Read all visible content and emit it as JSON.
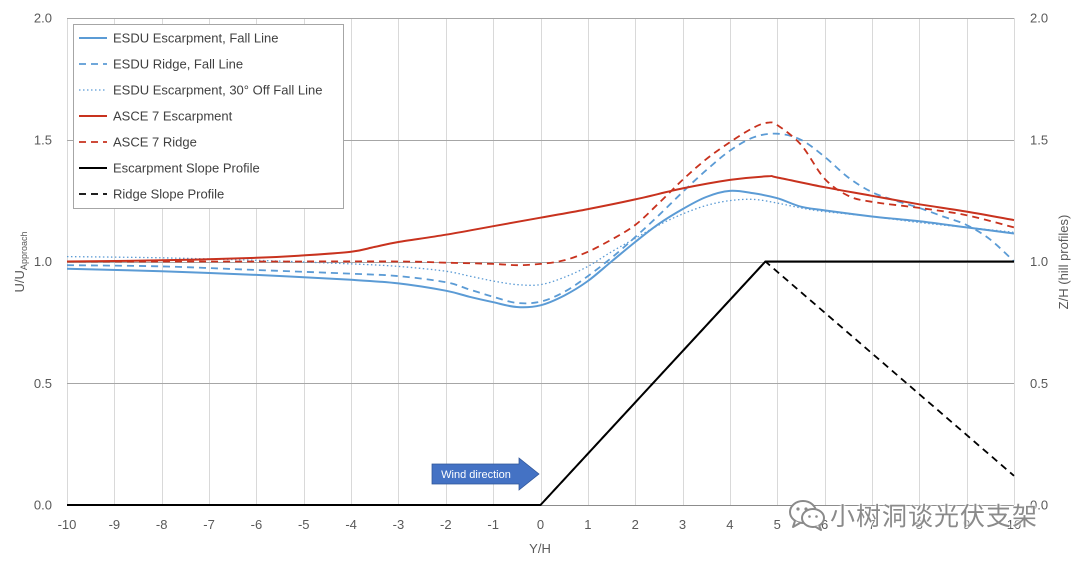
{
  "chart_data": {
    "type": "line",
    "title": "",
    "xlabel": "Y/H",
    "ylabel": {
      "main": "U/U",
      "subscript": "Approach"
    },
    "y2label": "Z/H (hill profiles)",
    "xlim": [
      -10,
      10
    ],
    "ylim": [
      0,
      2
    ],
    "y2lim": [
      0,
      2
    ],
    "x_ticks": [
      -10,
      -9,
      -8,
      -7,
      -6,
      -5,
      -4,
      -3,
      -2,
      -1,
      0,
      1,
      2,
      3,
      4,
      5,
      6,
      7,
      8,
      9,
      10
    ],
    "x_tick_labels": [
      "-10",
      "-9",
      "-8",
      "-7",
      "-6",
      "-5",
      "-4",
      "-3",
      "-2",
      "-1",
      "0",
      "1",
      "2",
      "3",
      "4",
      "5",
      "6",
      "7",
      "8",
      "9",
      "10"
    ],
    "y_ticks": [
      0,
      0.5,
      1,
      1.5,
      2
    ],
    "y_tick_labels": [
      "0.0",
      "0.5",
      "1.0",
      "1.5",
      "2.0"
    ],
    "y2_tick_labels": [
      "0.0",
      "0.5",
      "1.0",
      "1.5",
      "2.0"
    ],
    "grid": true,
    "legend_position": "top-left",
    "series": [
      {
        "name": "ESDU Escarpment, Fall Line",
        "axis": "left",
        "color": "#5b9bd5",
        "style": "solid",
        "x": [
          -10,
          -8,
          -6,
          -4,
          -3,
          -2,
          -1.5,
          -1,
          -0.5,
          0,
          0.5,
          1,
          1.5,
          2,
          2.5,
          3,
          3.5,
          4,
          4.5,
          5,
          5.5,
          6,
          7,
          8,
          9,
          10
        ],
        "y": [
          0.97,
          0.96,
          0.945,
          0.925,
          0.91,
          0.88,
          0.855,
          0.833,
          0.813,
          0.82,
          0.86,
          0.92,
          1.0,
          1.08,
          1.155,
          1.215,
          1.265,
          1.29,
          1.28,
          1.26,
          1.225,
          1.21,
          1.185,
          1.165,
          1.14,
          1.115
        ]
      },
      {
        "name": "ESDU Ridge, Fall Line",
        "axis": "left",
        "color": "#5b9bd5",
        "style": "dashed",
        "x": [
          -10,
          -8,
          -6,
          -4,
          -3,
          -2,
          -1.5,
          -1,
          -0.5,
          0,
          0.5,
          1,
          1.5,
          2,
          2.5,
          3,
          3.5,
          4,
          4.5,
          5,
          5.5,
          6,
          6.5,
          7,
          7.5,
          8,
          8.5,
          9,
          9.5,
          10
        ],
        "y": [
          0.985,
          0.98,
          0.965,
          0.95,
          0.94,
          0.915,
          0.885,
          0.855,
          0.83,
          0.835,
          0.875,
          0.94,
          1.015,
          1.1,
          1.19,
          1.285,
          1.375,
          1.455,
          1.51,
          1.525,
          1.5,
          1.43,
          1.345,
          1.285,
          1.25,
          1.22,
          1.185,
          1.15,
          1.09,
          1.0
        ]
      },
      {
        "name": "ESDU Escarpment, 30° Off Fall Line",
        "axis": "left",
        "color": "#5b9bd5",
        "style": "dotted",
        "x": [
          -10,
          -8,
          -6,
          -4,
          -3,
          -2,
          -1.5,
          -1,
          -0.5,
          0,
          0.5,
          1,
          1.5,
          2,
          2.5,
          3,
          3.5,
          4,
          4.5,
          5,
          5.5,
          6,
          7,
          8,
          9,
          10
        ],
        "y": [
          1.02,
          1.015,
          1.005,
          0.99,
          0.98,
          0.96,
          0.94,
          0.92,
          0.905,
          0.905,
          0.935,
          0.98,
          1.04,
          1.095,
          1.15,
          1.195,
          1.23,
          1.25,
          1.255,
          1.24,
          1.22,
          1.205,
          1.185,
          1.16,
          1.14,
          1.12
        ]
      },
      {
        "name": "ASCE 7 Escarpment",
        "axis": "left",
        "color": "#c8321e",
        "style": "solid",
        "x": [
          -10,
          -8,
          -6,
          -5,
          -4,
          -3.5,
          -3,
          -2,
          -1,
          0,
          1,
          2,
          3,
          4,
          4.8,
          5,
          6,
          7,
          8,
          9,
          10
        ],
        "y": [
          1.0,
          1.005,
          1.015,
          1.025,
          1.04,
          1.06,
          1.08,
          1.11,
          1.145,
          1.18,
          1.215,
          1.255,
          1.3,
          1.335,
          1.35,
          1.345,
          1.305,
          1.27,
          1.235,
          1.205,
          1.17
        ]
      },
      {
        "name": "ASCE 7 Ridge",
        "axis": "left",
        "color": "#c8321e",
        "style": "dashed",
        "x": [
          -10,
          -6,
          -3,
          -2,
          -1,
          -0.5,
          0,
          0.5,
          1,
          1.5,
          2,
          2.5,
          3,
          3.5,
          4,
          4.5,
          4.8,
          5,
          5.5,
          6,
          6.5,
          7,
          8,
          9,
          10
        ],
        "y": [
          1.0,
          1.0,
          1.0,
          0.995,
          0.99,
          0.985,
          0.99,
          1.005,
          1.04,
          1.09,
          1.15,
          1.24,
          1.335,
          1.42,
          1.49,
          1.55,
          1.57,
          1.56,
          1.48,
          1.34,
          1.27,
          1.245,
          1.22,
          1.19,
          1.14
        ]
      },
      {
        "name": "Escarpment Slope Profile",
        "axis": "right",
        "color": "#000000",
        "style": "solid",
        "x": [
          -10,
          0,
          4.75,
          10
        ],
        "y": [
          0,
          0,
          1.0,
          1.0
        ]
      },
      {
        "name": "Ridge Slope Profile",
        "axis": "right",
        "color": "#000000",
        "style": "dashed",
        "x": [
          -10,
          0,
          4.75,
          10
        ],
        "y": [
          0,
          0,
          1.0,
          0.12
        ]
      }
    ],
    "annotations": [
      {
        "text": "Wind direction",
        "kind": "arrow",
        "direction": "right",
        "color": "#4472c4"
      }
    ]
  },
  "watermark": {
    "text": "小树洞谈光伏支架",
    "icon": "wechat-icon"
  }
}
